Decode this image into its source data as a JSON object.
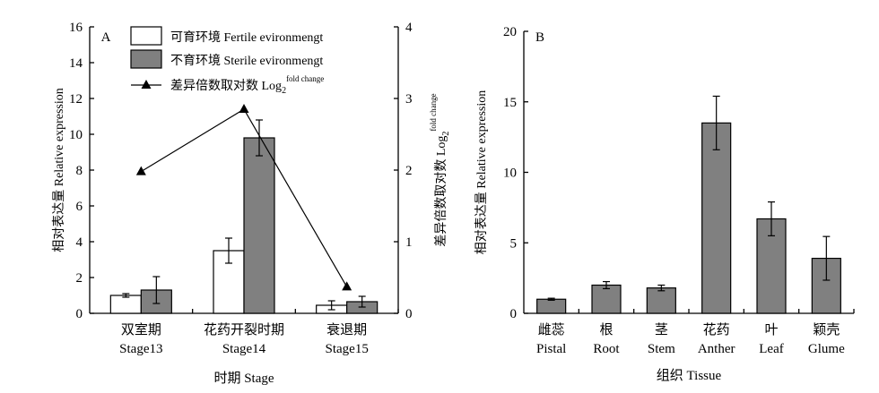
{
  "chart_data": [
    {
      "panel_label": "A",
      "type": "bar",
      "categories": [
        "Stage13",
        "Stage14",
        "Stage15"
      ],
      "categories_cn": [
        "双室期",
        "花药开裂时期",
        "衰退期"
      ],
      "xlabel": "时期 Stage",
      "ylabel": "相对表达量 Relative expression",
      "ylim": [
        0,
        16
      ],
      "yticks": [
        0,
        2,
        4,
        6,
        8,
        10,
        12,
        14,
        16
      ],
      "y2label_main": "差异倍数取对数 Log",
      "y2label_sub": "2",
      "y2label_sup": "fold change",
      "y2lim": [
        0,
        4
      ],
      "y2ticks": [
        0,
        1,
        2,
        3,
        4
      ],
      "legend_position": "top-left",
      "series": [
        {
          "name": "可育环境 Fertile evironmengt",
          "kind": "bar",
          "fill": "#ffffff",
          "values": [
            1.0,
            3.5,
            0.45
          ],
          "errors": [
            0.1,
            0.7,
            0.25
          ]
        },
        {
          "name": "不育环境 Sterile evironmengt",
          "kind": "bar",
          "fill": "#808080",
          "values": [
            1.3,
            9.8,
            0.65
          ],
          "errors": [
            0.75,
            1.0,
            0.3
          ]
        },
        {
          "name": "差异倍数取对数 Log",
          "name_sub": "2",
          "name_sup": "fold change",
          "kind": "line",
          "axis": "right",
          "marker": "triangle",
          "values": [
            1.98,
            2.85,
            0.37
          ]
        }
      ]
    },
    {
      "panel_label": "B",
      "type": "bar",
      "categories": [
        "Pistal",
        "Root",
        "Stem",
        "Anther",
        "Leaf",
        "Glume"
      ],
      "categories_cn": [
        "雌蕊",
        "根",
        "茎",
        "花药",
        "叶",
        "颖壳"
      ],
      "xlabel": "组织 Tissue",
      "ylabel": "相对表达量 Relative expression",
      "ylim": [
        0,
        20
      ],
      "yticks": [
        0,
        5,
        10,
        15,
        20
      ],
      "series": [
        {
          "name": "",
          "kind": "bar",
          "fill": "#808080",
          "values": [
            1.0,
            2.0,
            1.8,
            13.5,
            6.7,
            3.9
          ],
          "errors": [
            0.07,
            0.25,
            0.2,
            1.9,
            1.2,
            1.55
          ]
        }
      ]
    }
  ]
}
